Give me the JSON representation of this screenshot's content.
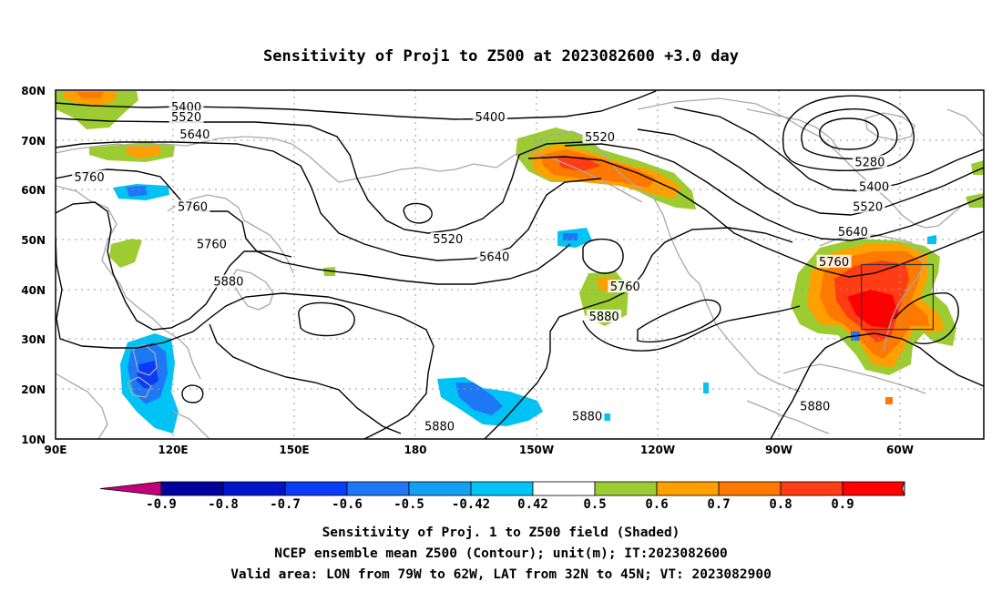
{
  "title": "Sensitivity of Proj1 to Z500 at 2023082600 +3.0 day",
  "map": {
    "lon_ticks": [
      "90E",
      "120E",
      "150E",
      "180",
      "150W",
      "120W",
      "90W",
      "60W"
    ],
    "lat_ticks": [
      "80N",
      "70N",
      "60N",
      "50N",
      "40N",
      "30N",
      "20N",
      "10N"
    ],
    "lon_range": [
      90,
      310
    ],
    "lat_range": [
      10,
      80
    ]
  },
  "contour_labels": [
    {
      "text": "5400",
      "lon": 121,
      "lat": 76.5
    },
    {
      "text": "5520",
      "lon": 121,
      "lat": 74.5
    },
    {
      "text": "5640",
      "lon": 123,
      "lat": 71
    },
    {
      "text": "5760",
      "lon": 98,
      "lat": 62.5
    },
    {
      "text": "5760",
      "lon": 122.5,
      "lat": 56.5
    },
    {
      "text": "5760",
      "lon": 127,
      "lat": 49
    },
    {
      "text": "5880",
      "lon": 131,
      "lat": 41.5
    },
    {
      "text": "5400",
      "lon": 193,
      "lat": 74.5
    },
    {
      "text": "5520",
      "lon": 183,
      "lat": 50
    },
    {
      "text": "5640",
      "lon": 194,
      "lat": 46.5
    },
    {
      "text": "5520",
      "lon": 219,
      "lat": 70.5
    },
    {
      "text": "5760",
      "lon": 225,
      "lat": 40.5
    },
    {
      "text": "5880",
      "lon": 220,
      "lat": 34.5
    },
    {
      "text": "5280",
      "lon": 283,
      "lat": 65.5
    },
    {
      "text": "5400",
      "lon": 284,
      "lat": 60.5
    },
    {
      "text": "5520",
      "lon": 282.5,
      "lat": 56.5
    },
    {
      "text": "5640",
      "lon": 279,
      "lat": 51.5
    },
    {
      "text": "5760",
      "lon": 274.5,
      "lat": 45.5
    },
    {
      "text": "5880",
      "lon": 270,
      "lat": 16.5
    },
    {
      "text": "5880",
      "lon": 181,
      "lat": 12.5
    },
    {
      "text": "5880",
      "lon": 216,
      "lat": 14.5
    }
  ],
  "valid_box": {
    "lon_min": 281,
    "lon_max": 298,
    "lat_min": 32,
    "lat_max": 45
  },
  "colorbar": {
    "labels": [
      "-0.9",
      "-0.8",
      "-0.7",
      "-0.6",
      "-0.5",
      "-0.42",
      "0.42",
      "0.5",
      "0.6",
      "0.7",
      "0.8",
      "0.9"
    ],
    "colors": [
      "#c4007b",
      "#00009c",
      "#0015c8",
      "#0a3cf5",
      "#1e78f5",
      "#14a0f0",
      "#00c3f5",
      "#ffffff",
      "#9ccc32",
      "#ffa000",
      "#ff7800",
      "#ff3c14",
      "#ff0000",
      "#ff9ec6"
    ]
  },
  "caption": {
    "line1": "Sensitivity of Proj. 1 to Z500 field (Shaded)",
    "line2": "NCEP ensemble mean Z500 (Contour); unit(m); IT:2023082600",
    "line3": "Valid area: LON from 79W to 62W, LAT from 32N to 45N; VT: 2023082900"
  }
}
